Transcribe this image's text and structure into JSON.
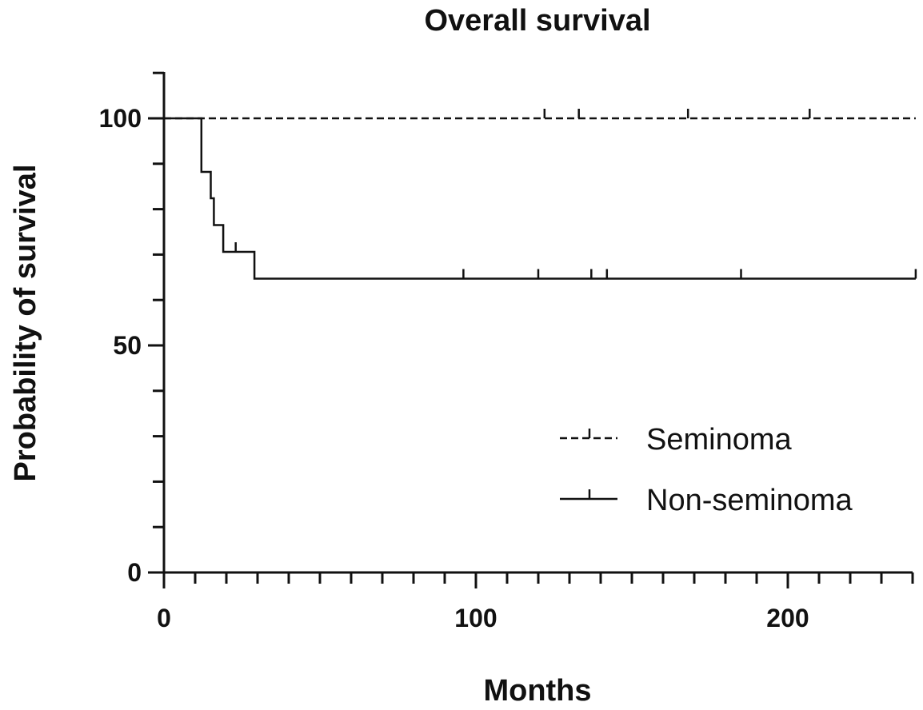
{
  "chart_data": {
    "type": "line",
    "title": "Overall survival",
    "xlabel": "Months",
    "ylabel": "Probability of survival",
    "xlim": [
      0,
      241
    ],
    "ylim": [
      0,
      110
    ],
    "xticks": [
      0,
      100,
      200
    ],
    "xtick_labels": [
      "0",
      "100",
      "200"
    ],
    "x_minor_step": 10,
    "yticks": [
      0,
      50,
      100
    ],
    "ytick_labels": [
      "0",
      "50",
      "100"
    ],
    "y_minor_step": 10,
    "grid": false,
    "legend_position": "bottom-right",
    "series": [
      {
        "name": "Seminoma",
        "style": "dashed",
        "steps": [
          [
            0,
            100
          ],
          [
            241,
            100
          ]
        ],
        "censored": [
          [
            122,
            100
          ],
          [
            133,
            100
          ],
          [
            168,
            100
          ],
          [
            207,
            100
          ]
        ]
      },
      {
        "name": "Non-seminoma",
        "style": "solid",
        "steps": [
          [
            0,
            100
          ],
          [
            12,
            100
          ],
          [
            12,
            88.2
          ],
          [
            15,
            88.2
          ],
          [
            15,
            82.4
          ],
          [
            16,
            82.4
          ],
          [
            16,
            76.5
          ],
          [
            19,
            76.5
          ],
          [
            19,
            70.6
          ],
          [
            29,
            70.6
          ],
          [
            29,
            64.7
          ],
          [
            241,
            64.7
          ]
        ],
        "censored": [
          [
            23,
            70.6
          ],
          [
            96,
            64.7
          ],
          [
            120,
            64.7
          ],
          [
            137,
            64.7
          ],
          [
            142,
            64.7
          ],
          [
            185,
            64.7
          ],
          [
            241,
            64.7
          ]
        ]
      }
    ]
  }
}
